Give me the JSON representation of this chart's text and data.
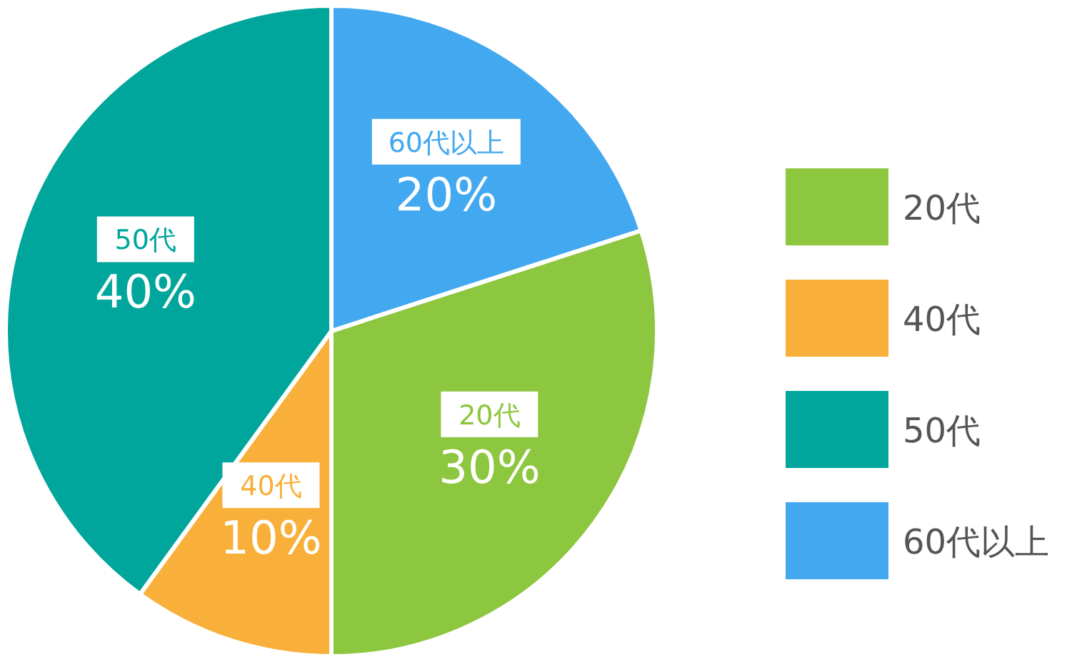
{
  "chart_data": {
    "type": "pie",
    "categories": [
      "20代",
      "40代",
      "50代",
      "60代以上"
    ],
    "values": [
      30,
      10,
      40,
      20
    ],
    "colors": [
      "#8dc63f",
      "#f9b03a",
      "#00a69c",
      "#42a8f0"
    ],
    "value_labels": [
      "30%",
      "10%",
      "40%",
      "20%"
    ],
    "legend": "right"
  }
}
